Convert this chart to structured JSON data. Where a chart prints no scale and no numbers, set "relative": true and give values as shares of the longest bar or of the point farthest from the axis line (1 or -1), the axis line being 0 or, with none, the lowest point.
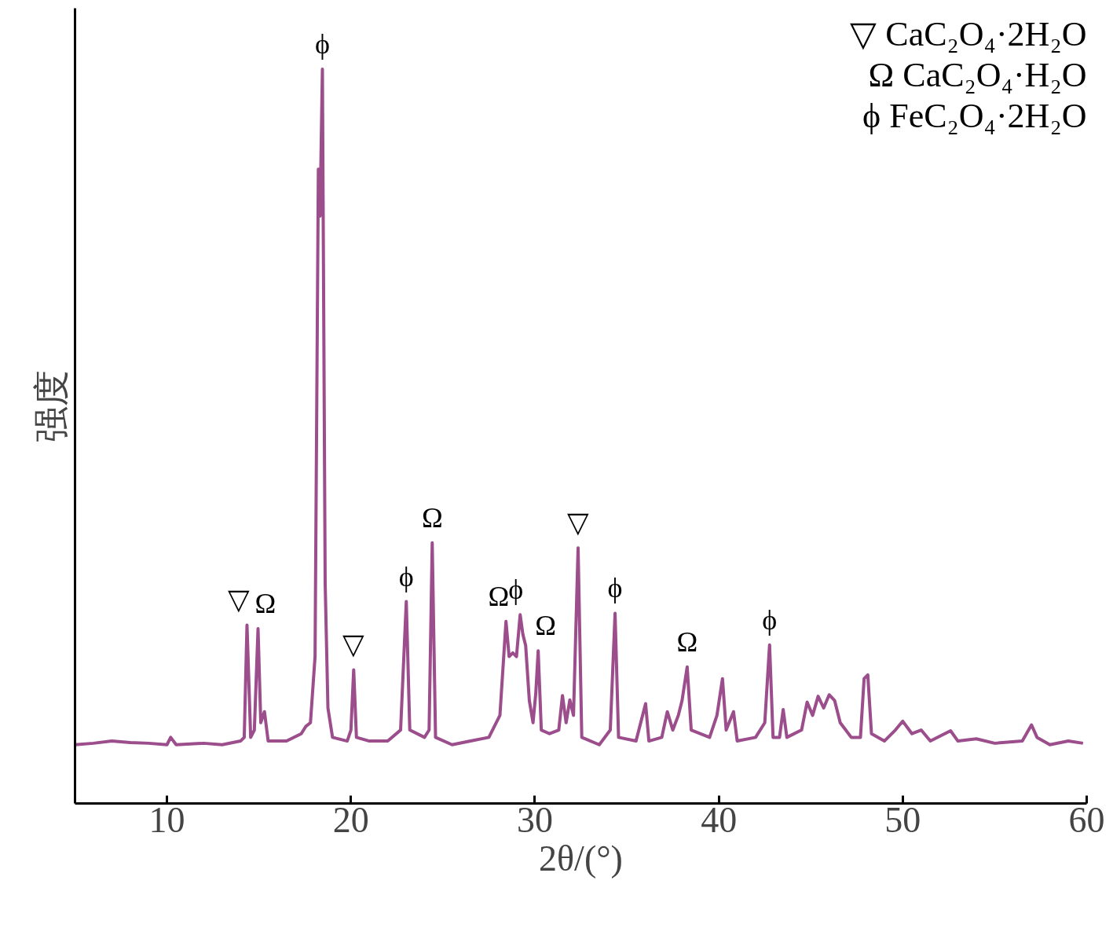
{
  "chart_data": {
    "type": "line",
    "relative": true,
    "xlabel": "2θ/(°)",
    "ylabel": "强度",
    "xlim": [
      5,
      60
    ],
    "xticks": [
      10,
      20,
      30,
      40,
      50,
      60
    ],
    "grid": false,
    "marker": "none",
    "line_style": "solid",
    "series": [
      {
        "color": "#9b4d8c",
        "x": [
          5.0,
          6,
          7,
          8,
          9,
          10,
          10.2,
          10.5,
          12,
          13,
          14,
          14.2,
          14.35,
          14.55,
          14.75,
          14.95,
          15.1,
          15.3,
          15.5,
          16.5,
          17.3,
          17.55,
          17.8,
          18.05,
          18.23,
          18.32,
          18.45,
          18.6,
          18.75,
          19,
          19.8,
          20.0,
          20.15,
          20.3,
          21,
          22,
          22.7,
          23.01,
          23.2,
          24.0,
          24.25,
          24.42,
          24.6,
          25.5,
          26.5,
          27.5,
          28.1,
          28.43,
          28.6,
          28.8,
          29.0,
          29.2,
          29.35,
          29.5,
          29.7,
          29.9,
          30.05,
          30.18,
          30.35,
          30.8,
          31.3,
          31.5,
          31.7,
          31.9,
          32.1,
          32.35,
          32.55,
          33.5,
          34.1,
          34.36,
          34.55,
          35.5,
          36.02,
          36.2,
          36.9,
          37.2,
          37.5,
          37.8,
          38.0,
          38.28,
          38.5,
          39.5,
          39.9,
          40.2,
          40.4,
          40.8,
          41,
          42,
          42.5,
          42.76,
          42.95,
          43.3,
          43.5,
          43.7,
          44.5,
          44.8,
          45.1,
          45.4,
          45.7,
          46.0,
          46.3,
          46.6,
          46.9,
          47.2,
          47.7,
          47.9,
          48.1,
          48.3,
          49,
          49.6,
          50.0,
          50.5,
          51,
          51.5,
          52.6,
          53,
          54,
          55,
          56.5,
          57.0,
          57.3,
          58,
          59,
          59.8
        ],
        "values": [
          0.08,
          0.082,
          0.085,
          0.083,
          0.082,
          0.08,
          0.09,
          0.08,
          0.082,
          0.08,
          0.085,
          0.09,
          0.243,
          0.09,
          0.1,
          0.238,
          0.11,
          0.125,
          0.085,
          0.085,
          0.095,
          0.105,
          0.11,
          0.2,
          0.864,
          0.8,
          1.0,
          0.3,
          0.13,
          0.09,
          0.085,
          0.1,
          0.182,
          0.09,
          0.085,
          0.085,
          0.1,
          0.275,
          0.1,
          0.09,
          0.1,
          0.355,
          0.09,
          0.08,
          0.085,
          0.09,
          0.12,
          0.248,
          0.2,
          0.205,
          0.2,
          0.257,
          0.23,
          0.215,
          0.14,
          0.11,
          0.15,
          0.208,
          0.1,
          0.095,
          0.1,
          0.147,
          0.11,
          0.141,
          0.12,
          0.348,
          0.09,
          0.08,
          0.1,
          0.259,
          0.09,
          0.085,
          0.136,
          0.085,
          0.09,
          0.125,
          0.1,
          0.12,
          0.14,
          0.186,
          0.1,
          0.09,
          0.12,
          0.17,
          0.1,
          0.125,
          0.085,
          0.09,
          0.11,
          0.216,
          0.09,
          0.09,
          0.128,
          0.09,
          0.1,
          0.138,
          0.12,
          0.146,
          0.13,
          0.148,
          0.14,
          0.11,
          0.1,
          0.09,
          0.09,
          0.17,
          0.175,
          0.095,
          0.085,
          0.1,
          0.112,
          0.095,
          0.1,
          0.085,
          0.099,
          0.085,
          0.088,
          0.082,
          0.085,
          0.107,
          0.09,
          0.08,
          0.085,
          0.082
        ]
      }
    ],
    "annotations": [
      "▽ CaC₂O₄·2H₂O",
      "Ω CaC₂O₄·H₂O",
      "ϕ FeC₂O₄·2H₂O",
      {
        "text": "▽",
        "x": 14.35,
        "y": 0.243
      },
      {
        "text": "Ω",
        "x": 14.95,
        "y": 0.238
      },
      {
        "text": "ϕ",
        "x": 18.45,
        "y": 1.0
      },
      {
        "text": "▽",
        "x": 20.15,
        "y": 0.182
      },
      {
        "text": "ϕ",
        "x": 23.01,
        "y": 0.275
      },
      {
        "text": "Ω",
        "x": 24.42,
        "y": 0.355
      },
      {
        "text": "Ω",
        "x": 28.43,
        "y": 0.248
      },
      {
        "text": "ϕ",
        "x": 29.2,
        "y": 0.257
      },
      {
        "text": "Ω",
        "x": 30.18,
        "y": 0.208
      },
      {
        "text": "▽",
        "x": 32.35,
        "y": 0.348
      },
      {
        "text": "ϕ",
        "x": 34.36,
        "y": 0.259
      },
      {
        "text": "Ω",
        "x": 38.28,
        "y": 0.186
      },
      {
        "text": "ϕ",
        "x": 42.76,
        "y": 0.216
      }
    ]
  }
}
